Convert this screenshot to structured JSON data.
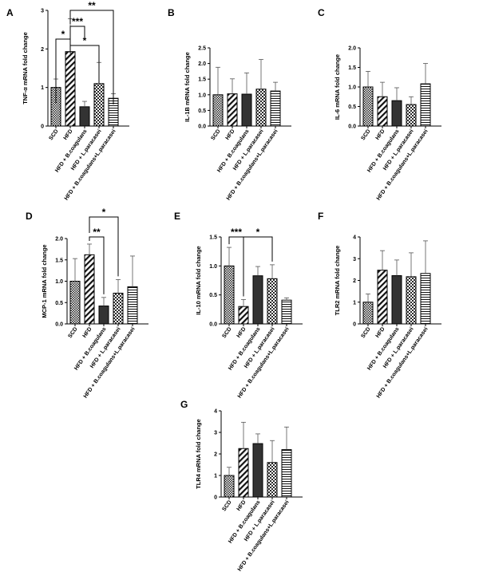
{
  "categories": [
    "SCD",
    "HFD",
    "HFD + B.coagulans",
    "HFD + L.paracasei",
    "HFD + B.coagulans+L.paracasei"
  ],
  "chart_data": [
    {
      "type": "bar",
      "panel": "A",
      "ylabel": "TNF-α mRNA fold change",
      "ylim": [
        0,
        3
      ],
      "yticks": [
        "0",
        "1",
        "2",
        "3"
      ],
      "tick_values": [
        0,
        1,
        2,
        3
      ],
      "values": [
        1.0,
        1.93,
        0.5,
        1.1,
        0.72
      ],
      "errors": [
        0.22,
        0.85,
        0.14,
        0.55,
        0.12
      ],
      "significance": [
        {
          "from": 0,
          "to": 1,
          "label": "*"
        },
        {
          "from": 1,
          "to": 2,
          "label": "***"
        },
        {
          "from": 1,
          "to": 3,
          "label": "*"
        },
        {
          "from": 1,
          "to": 4,
          "label": "**"
        }
      ]
    },
    {
      "type": "bar",
      "panel": "B",
      "ylabel": "IL-1B mRNA fold change",
      "ylim": [
        0,
        2.5
      ],
      "yticks": [
        "0.0",
        "0.5",
        "1.0",
        "1.5",
        "2.0",
        "2.5"
      ],
      "tick_values": [
        0,
        0.5,
        1,
        1.5,
        2,
        2.5
      ],
      "values": [
        1.0,
        1.03,
        1.02,
        1.18,
        1.12
      ],
      "errors": [
        0.88,
        0.48,
        0.68,
        0.95,
        0.28
      ],
      "significance": []
    },
    {
      "type": "bar",
      "panel": "C",
      "ylabel": "IL-6 mRNA fold change",
      "ylim": [
        0,
        2.0
      ],
      "yticks": [
        "0.0",
        "0.5",
        "1.0",
        "1.5",
        "2.0"
      ],
      "tick_values": [
        0,
        0.5,
        1,
        1.5,
        2
      ],
      "values": [
        1.0,
        0.75,
        0.65,
        0.55,
        1.08
      ],
      "errors": [
        0.4,
        0.37,
        0.33,
        0.2,
        0.52
      ],
      "significance": []
    },
    {
      "type": "bar",
      "panel": "D",
      "ylabel": "MCP-1 mRNA fold change",
      "ylim": [
        0,
        2.0
      ],
      "yticks": [
        "0.0",
        "0.5",
        "1.0",
        "1.5",
        "2.0"
      ],
      "tick_values": [
        0,
        0.5,
        1,
        1.5,
        2
      ],
      "values": [
        1.0,
        1.62,
        0.42,
        0.72,
        0.87
      ],
      "errors": [
        0.53,
        0.25,
        0.2,
        0.32,
        0.72
      ],
      "significance": [
        {
          "from": 1,
          "to": 2,
          "label": "**"
        },
        {
          "from": 1,
          "to": 3,
          "label": "*"
        }
      ]
    },
    {
      "type": "bar",
      "panel": "E",
      "ylabel": "IL-10 mRNA fold change",
      "ylim": [
        0,
        1.5
      ],
      "yticks": [
        "0.0",
        "0.5",
        "1.0",
        "1.5"
      ],
      "tick_values": [
        0,
        0.5,
        1,
        1.5
      ],
      "values": [
        1.0,
        0.3,
        0.83,
        0.78,
        0.41
      ],
      "errors": [
        0.32,
        0.12,
        0.16,
        0.24,
        0.04
      ],
      "significance": [
        {
          "from": 0,
          "to": 1,
          "label": "***"
        },
        {
          "from": 1,
          "to": 3,
          "label": "*"
        }
      ]
    },
    {
      "type": "bar",
      "panel": "F",
      "ylabel": "TLR2 mRNA fold change",
      "ylim": [
        0,
        4
      ],
      "yticks": [
        "0",
        "1",
        "2",
        "3",
        "4"
      ],
      "tick_values": [
        0,
        1,
        2,
        3,
        4
      ],
      "values": [
        1.0,
        2.47,
        2.22,
        2.17,
        2.32
      ],
      "errors": [
        0.38,
        0.9,
        0.72,
        1.1,
        1.5
      ],
      "significance": []
    },
    {
      "type": "bar",
      "panel": "G",
      "ylabel": "TLR4 mRNA fold change",
      "ylim": [
        0,
        4
      ],
      "yticks": [
        "0",
        "1",
        "2",
        "3",
        "4"
      ],
      "tick_values": [
        0,
        1,
        2,
        3,
        4
      ],
      "values": [
        1.0,
        2.25,
        2.48,
        1.6,
        2.2
      ],
      "errors": [
        0.38,
        1.22,
        0.45,
        1.02,
        1.05
      ],
      "significance": []
    }
  ]
}
